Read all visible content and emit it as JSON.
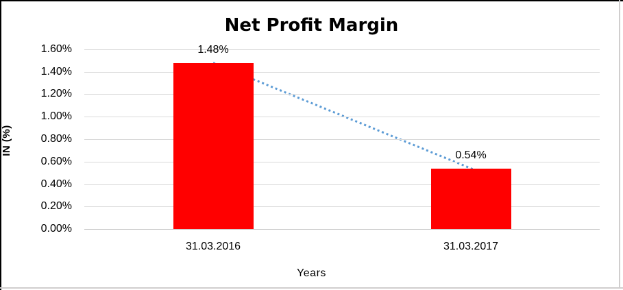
{
  "chart_data": {
    "type": "bar",
    "title": "Net Profit Margin",
    "xlabel": "Years",
    "ylabel": "IN (%)",
    "categories": [
      "31.03.2016",
      "31.03.2017"
    ],
    "values": [
      1.48,
      0.54
    ],
    "value_labels": [
      "1.48%",
      "0.54%"
    ],
    "ylim": [
      0,
      1.6
    ],
    "ytick_step": 0.2,
    "ytick_labels": [
      "0.00%",
      "0.20%",
      "0.40%",
      "0.60%",
      "0.80%",
      "1.00%",
      "1.20%",
      "1.40%",
      "1.60%"
    ],
    "grid": true,
    "legend": "none",
    "colors": {
      "bar": "#ff0000",
      "trendline": "#5b9bd5",
      "gridline": "#d9d9d9",
      "text": "#000000"
    },
    "trendline": {
      "kind": "linear",
      "style": "dotted"
    }
  }
}
